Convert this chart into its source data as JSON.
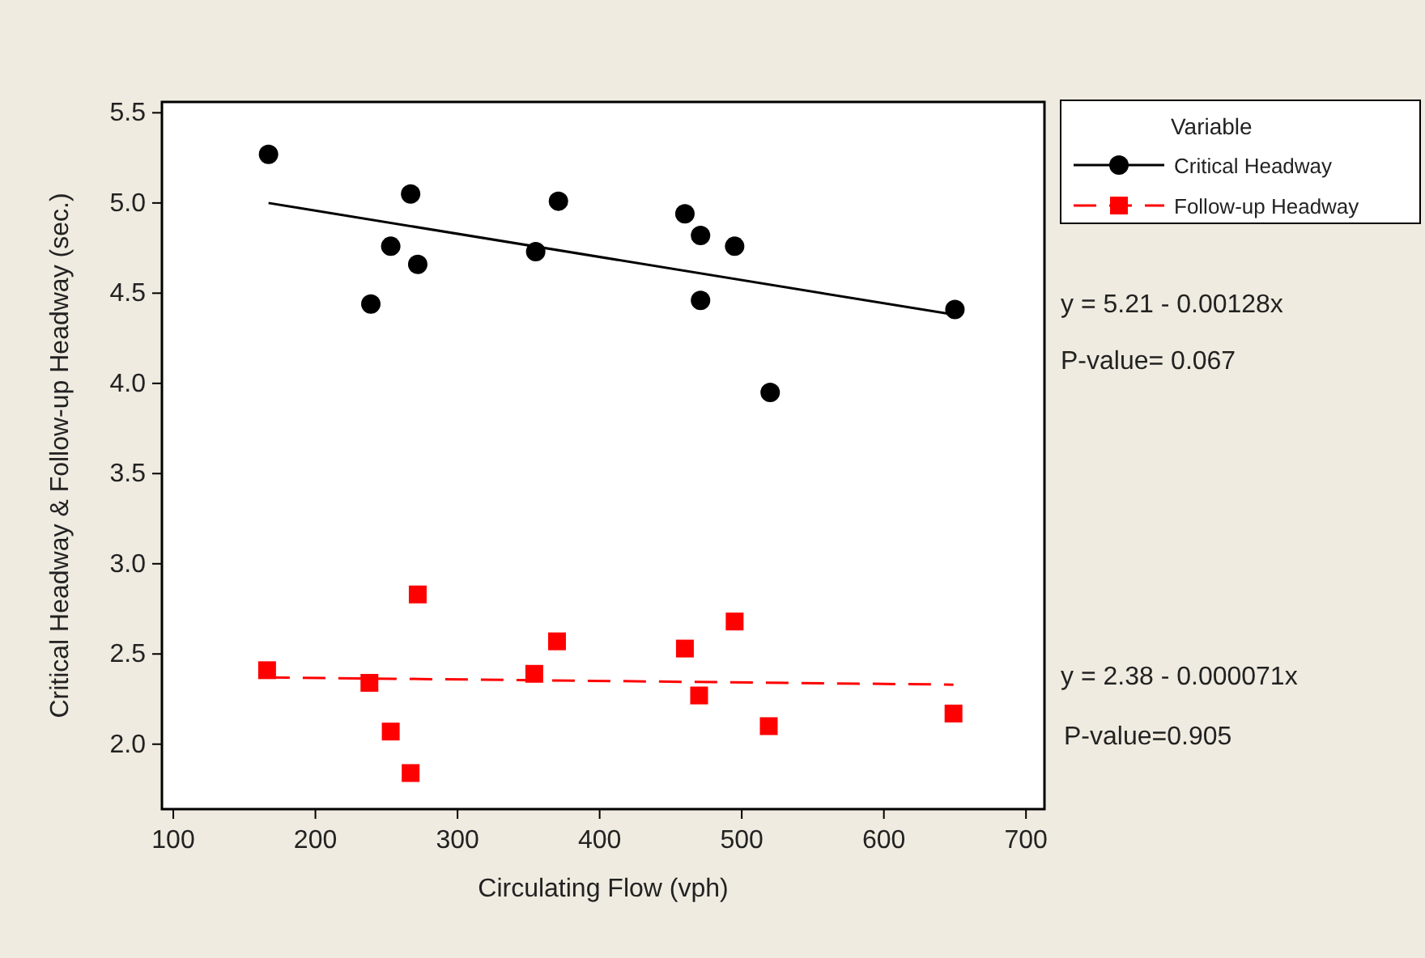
{
  "chart_data": {
    "type": "scatter",
    "xlabel": "Circulating Flow (vph)",
    "ylabel": "Critical Headway & Follow-up Headway (sec.)",
    "legend_title": "Variable",
    "legend": "top right",
    "xlim": [
      92,
      713
    ],
    "xticks": [
      100,
      200,
      300,
      400,
      500,
      600,
      700
    ],
    "ylim": [
      1.64,
      5.56
    ],
    "yticks": [
      {
        "value": 2,
        "label": "2.0"
      },
      {
        "value": 2.5,
        "label": "2.5"
      },
      {
        "value": 3,
        "label": "3.0"
      },
      {
        "value": 3.5,
        "label": "3.5"
      },
      {
        "value": 4,
        "label": "4.0"
      },
      {
        "value": 4.5,
        "label": "4.5"
      },
      {
        "value": 5,
        "label": "5.0"
      },
      {
        "value": 5.5,
        "label": "5.5"
      }
    ],
    "series": [
      {
        "name": "Critical Headway",
        "marker": "circle",
        "color": "#000000",
        "x": [
          167,
          239,
          253,
          267,
          272,
          355,
          371,
          460,
          471,
          471,
          495,
          520,
          650
        ],
        "values": [
          5.27,
          4.44,
          4.76,
          5.05,
          4.66,
          4.73,
          5.01,
          4.94,
          4.82,
          4.46,
          4.76,
          3.95,
          4.41
        ]
      },
      {
        "name": "Follow-up Headway",
        "marker": "square",
        "color": "#ff0000",
        "x": [
          166,
          238,
          253,
          267,
          272,
          354,
          370,
          460,
          470,
          495,
          519,
          649
        ],
        "values": [
          2.41,
          2.34,
          2.07,
          1.84,
          2.83,
          2.39,
          2.57,
          2.53,
          2.27,
          2.68,
          2.1,
          2.17
        ]
      },
      {
        "type": "line",
        "line_style": "solid",
        "color": "#000000",
        "x": [
          167,
          650
        ],
        "values": [
          5.0,
          4.38
        ]
      },
      {
        "type": "line",
        "line_style": "dashed",
        "color": "#ff0000",
        "x": [
          166,
          649
        ],
        "values": [
          2.37,
          2.33
        ]
      }
    ],
    "annotations": [
      "y = 5.21 - 0.00128x",
      "P-value= 0.067",
      "y = 2.38 - 0.000071x",
      "P-value=0.905"
    ]
  }
}
